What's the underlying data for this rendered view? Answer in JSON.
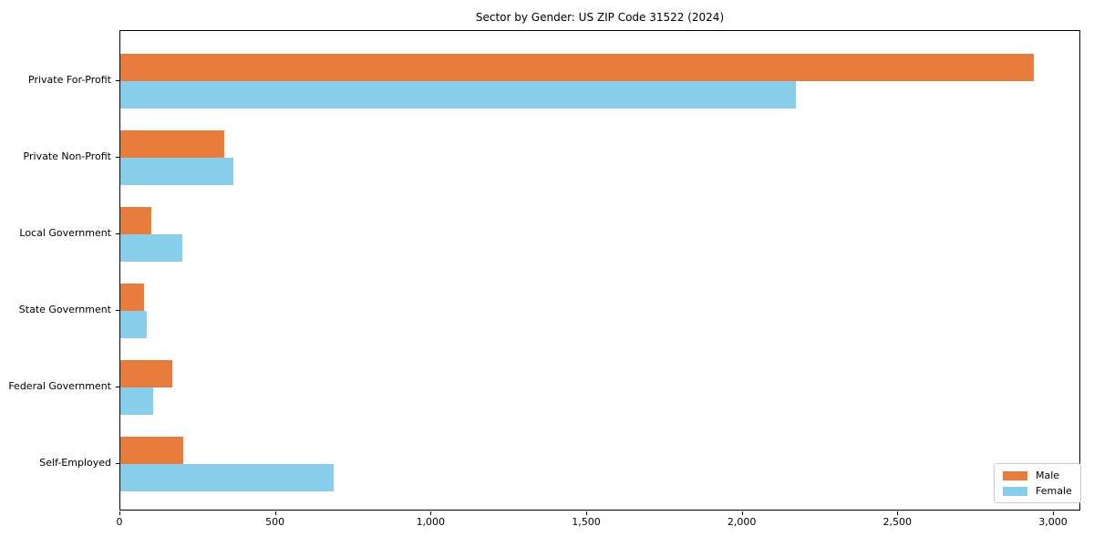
{
  "chart_data": {
    "type": "bar",
    "orientation": "horizontal",
    "title": "Sector by Gender: US ZIP Code 31522 (2024)",
    "categories": [
      "Private For-Profit",
      "Private Non-Profit",
      "Local Government",
      "State Government",
      "Federal Government",
      "Self-Employed"
    ],
    "series": [
      {
        "name": "Male",
        "color": "#E87C3C",
        "values": [
          2940,
          335,
          100,
          75,
          167,
          202
        ]
      },
      {
        "name": "Female",
        "color": "#87CEEB",
        "values": [
          2175,
          365,
          200,
          85,
          105,
          686
        ]
      }
    ],
    "xlabel": "",
    "ylabel": "",
    "xlim": [
      0,
      3088
    ],
    "x_ticks": [
      0,
      500,
      1000,
      1500,
      2000,
      2500,
      3000
    ],
    "x_tick_labels": [
      "0",
      "500",
      "1,000",
      "1,500",
      "2,000",
      "2,500",
      "3,000"
    ],
    "grid": false,
    "legend_position": "lower right",
    "colors": {
      "male": "#E87C3C",
      "female": "#87CEEB",
      "spine": "#000000",
      "legend_border": "#cccccc"
    }
  }
}
